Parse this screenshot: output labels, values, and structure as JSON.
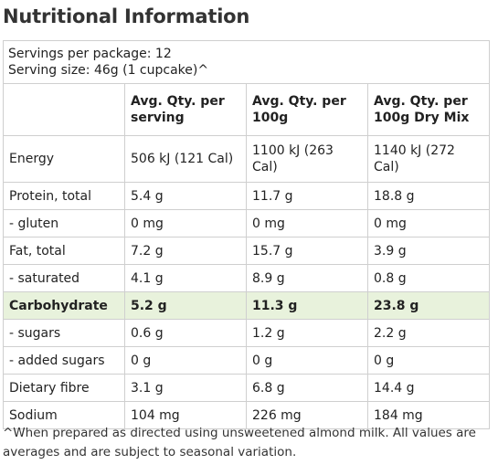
{
  "title": "Nutritional Information",
  "servings_per_package": "Servings per package: 12",
  "serving_size": "Serving size: 46g (1 cupcake)^",
  "columns": [
    "",
    "Avg. Qty. per serving",
    "Avg. Qty. per 100g",
    "Avg. Qty. per 100g Dry Mix"
  ],
  "rows": [
    {
      "name": "Energy",
      "serving": "506 kJ (121 Cal)",
      "per100g": "1100 kJ (263 Cal)",
      "dry": "1140 kJ (272 Cal)"
    },
    {
      "name": "Protein, total",
      "serving": "5.4 g",
      "per100g": "11.7 g",
      "dry": "18.8 g"
    },
    {
      "name": "- gluten",
      "serving": "0 mg",
      "per100g": "0 mg",
      "dry": "0 mg"
    },
    {
      "name": "Fat, total",
      "serving": "7.2 g",
      "per100g": "15.7 g",
      "dry": "3.9 g"
    },
    {
      "name": "- saturated",
      "serving": "4.1 g",
      "per100g": "8.9 g",
      "dry": "0.8 g"
    },
    {
      "name": "Carbohydrate",
      "serving": "5.2 g",
      "per100g": "11.3 g",
      "dry": "23.8 g",
      "highlight": true
    },
    {
      "name": "- sugars",
      "serving": "0.6 g",
      "per100g": "1.2 g",
      "dry": "2.2 g"
    },
    {
      "name": "- added sugars",
      "serving": "0 g",
      "per100g": "0 g",
      "dry": "0 g"
    },
    {
      "name": "Dietary fibre",
      "serving": "3.1 g",
      "per100g": "6.8 g",
      "dry": "14.4 g"
    },
    {
      "name": "Sodium",
      "serving": "104 mg",
      "per100g": "226 mg",
      "dry": "184 mg"
    }
  ],
  "footnote": "^When prepared as directed using unsweetened almond milk. All values are averages and are subject to seasonal variation.",
  "colors": {
    "highlight_row": "#e8f2dc",
    "border": "#cfcfcf",
    "text": "#222222"
  }
}
